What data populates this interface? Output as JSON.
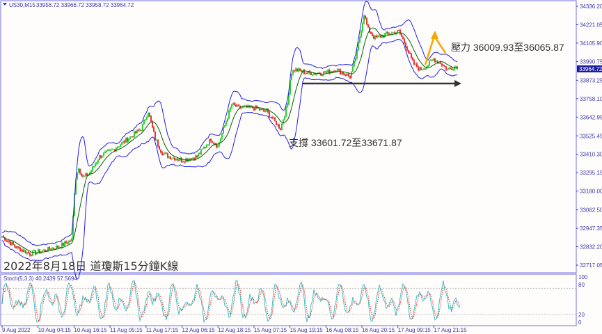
{
  "header": {
    "symbol": "US30,M15",
    "ohlc": "33958.72 33966.72 33958.72 33964.72"
  },
  "price_axis": [
    "34336.20",
    "34221.05",
    "34105.90",
    "33990.75",
    "33873.25",
    "33758.10",
    "33642.95",
    "33525.45",
    "33410.30",
    "33295.15",
    "33180.00",
    "33062.50",
    "32947.35",
    "32832.20",
    "32717.05"
  ],
  "current_price": "33964.72",
  "time_axis": [
    "9 Aug 2022",
    "10 Aug 04:15",
    "10 Aug 16:15",
    "11 Aug 05:15",
    "11 Aug 17:15",
    "12 Aug 06:15",
    "12 Aug 18:15",
    "15 Aug 07:15",
    "15 Aug 19:15",
    "16 Aug 08:15",
    "16 Aug 20:15",
    "17 Aug 09:15",
    "17 Aug 21:15"
  ],
  "stoch": {
    "label": "Stoch(5,3,3) 40.2439 57.5694",
    "levels": [
      "100",
      "80",
      "20",
      "0"
    ]
  },
  "annotations": {
    "title": "2022年8月18日 道瓊斯15分鐘K線",
    "resistance": "壓力 36009.93至36065.87",
    "support": "支撐 33601.72至33671.87"
  },
  "colors": {
    "bull": "#00c000",
    "bear": "#e00000",
    "bands": "#2020e0",
    "ma": "#006000",
    "axis": "#3a3aa8",
    "resistance_arrow": "#f5a800",
    "support_arrow": "#333333",
    "stoch_main": "#40c0c0",
    "stoch_signal": "#e03030"
  },
  "chart_data": {
    "type": "candlestick",
    "indicators": [
      "Bollinger Bands",
      "Moving Average",
      "Stochastic(5,3,3)"
    ],
    "ylim": [
      32717.05,
      34336.2
    ],
    "price_path": [
      [
        0,
        32896
      ],
      [
        20,
        32830
      ],
      [
        40,
        32787
      ],
      [
        60,
        32809
      ],
      [
        80,
        32830
      ],
      [
        100,
        32874
      ],
      [
        105,
        33244
      ],
      [
        110,
        33331
      ],
      [
        115,
        33266
      ],
      [
        125,
        33287
      ],
      [
        140,
        33396
      ],
      [
        160,
        33440
      ],
      [
        180,
        33505
      ],
      [
        200,
        33570
      ],
      [
        210,
        33679
      ],
      [
        220,
        33505
      ],
      [
        230,
        33418
      ],
      [
        240,
        33396
      ],
      [
        260,
        33374
      ],
      [
        280,
        33396
      ],
      [
        300,
        33505
      ],
      [
        310,
        33461
      ],
      [
        320,
        33592
      ],
      [
        330,
        33723
      ],
      [
        340,
        33701
      ],
      [
        360,
        33701
      ],
      [
        380,
        33679
      ],
      [
        400,
        33570
      ],
      [
        410,
        33723
      ],
      [
        415,
        33918
      ],
      [
        420,
        33940
      ],
      [
        440,
        33918
      ],
      [
        460,
        33918
      ],
      [
        480,
        33940
      ],
      [
        500,
        33897
      ],
      [
        505,
        33962
      ],
      [
        510,
        34049
      ],
      [
        520,
        34288
      ],
      [
        525,
        34201
      ],
      [
        535,
        34136
      ],
      [
        550,
        34158
      ],
      [
        570,
        34180
      ],
      [
        580,
        34093
      ],
      [
        590,
        33984
      ],
      [
        600,
        33940
      ],
      [
        610,
        33962
      ],
      [
        620,
        34005
      ],
      [
        630,
        33984
      ],
      [
        640,
        33940
      ],
      [
        655,
        33964.72
      ]
    ]
  }
}
